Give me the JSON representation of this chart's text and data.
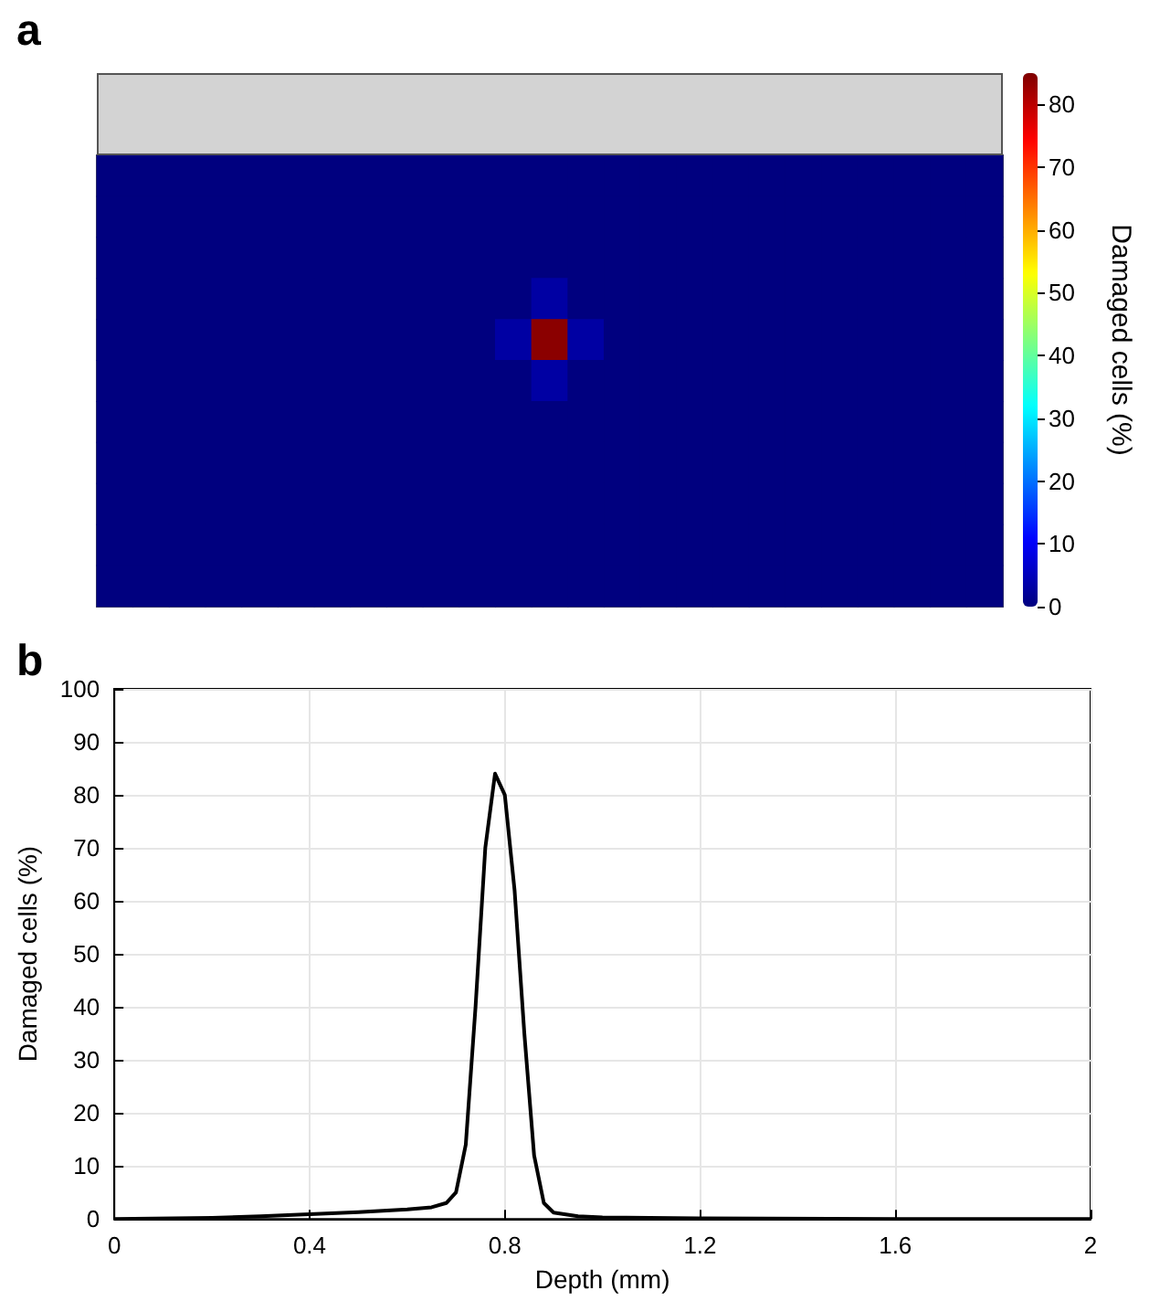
{
  "chart_data": [
    {
      "type": "heatmap",
      "title": "a",
      "clabel": "Damaged cells (%)",
      "clim": [
        0,
        85
      ],
      "cticks": [
        0,
        10,
        20,
        30,
        40,
        50,
        60,
        70,
        80
      ],
      "categories": [
        null,
        null,
        null,
        null,
        null,
        null,
        null,
        null,
        null,
        null,
        null,
        null,
        null,
        null,
        null,
        null,
        null,
        null,
        null,
        null,
        null,
        null,
        null,
        null,
        null
      ],
      "y_categories": [
        null,
        null,
        null,
        null,
        null,
        null,
        null,
        null,
        null,
        null,
        null
      ],
      "cells": [
        [
          0,
          0,
          0,
          0,
          0,
          0,
          0,
          0,
          0,
          0,
          0,
          0,
          0,
          0,
          0,
          0,
          0,
          0,
          0,
          0,
          0,
          0,
          0,
          0,
          0
        ],
        [
          0,
          0,
          0,
          0,
          0,
          0,
          0,
          0,
          0,
          0,
          0,
          0,
          0,
          0,
          0,
          0,
          0,
          0,
          0,
          0,
          0,
          0,
          0,
          0,
          0
        ],
        [
          0,
          0,
          0,
          0,
          0,
          0,
          0,
          0,
          0,
          0,
          0,
          0,
          0,
          0,
          0,
          0,
          0,
          0,
          0,
          0,
          0,
          0,
          0,
          0,
          0
        ],
        [
          0,
          0,
          0,
          0,
          0,
          0,
          0,
          0,
          0,
          0,
          0,
          0,
          3,
          0,
          0,
          0,
          0,
          0,
          0,
          0,
          0,
          0,
          0,
          0,
          0
        ],
        [
          0,
          0,
          0,
          0,
          0,
          0,
          0,
          0,
          0,
          0,
          0,
          3,
          84,
          3,
          0,
          0,
          0,
          0,
          0,
          0,
          0,
          0,
          0,
          0,
          0
        ],
        [
          0,
          0,
          0,
          0,
          0,
          0,
          0,
          0,
          0,
          0,
          0,
          0,
          3,
          0,
          0,
          0,
          0,
          0,
          0,
          0,
          0,
          0,
          0,
          0,
          0
        ],
        [
          0,
          0,
          0,
          0,
          0,
          0,
          0,
          0,
          0,
          0,
          0,
          0,
          0,
          0,
          0,
          0,
          0,
          0,
          0,
          0,
          0,
          0,
          0,
          0,
          0
        ],
        [
          0,
          0,
          0,
          0,
          0,
          0,
          0,
          0,
          0,
          0,
          0,
          0,
          0,
          0,
          0,
          0,
          0,
          0,
          0,
          0,
          0,
          0,
          0,
          0,
          0
        ],
        [
          0,
          0,
          0,
          0,
          0,
          0,
          0,
          0,
          0,
          0,
          0,
          0,
          0,
          0,
          0,
          0,
          0,
          0,
          0,
          0,
          0,
          0,
          0,
          0,
          0
        ],
        [
          0,
          0,
          0,
          0,
          0,
          0,
          0,
          0,
          0,
          0,
          0,
          0,
          0,
          0,
          0,
          0,
          0,
          0,
          0,
          0,
          0,
          0,
          0,
          0,
          0
        ],
        [
          0,
          0,
          0,
          0,
          0,
          0,
          0,
          0,
          0,
          0,
          0,
          0,
          0,
          0,
          0,
          0,
          0,
          0,
          0,
          0,
          0,
          0,
          0,
          0,
          0
        ]
      ]
    },
    {
      "type": "line",
      "title": "b",
      "xlabel": "Depth (mm)",
      "ylabel": "Damaged cells (%)",
      "xlim": [
        0,
        2
      ],
      "xticks": [
        0,
        0.4,
        0.8,
        1.2,
        1.6,
        2
      ],
      "ylim": [
        0,
        100
      ],
      "yticks": [
        0,
        10,
        20,
        30,
        40,
        50,
        60,
        70,
        80,
        90,
        100
      ],
      "grid": true,
      "marker": "none",
      "x": [
        0,
        0.2,
        0.3,
        0.4,
        0.5,
        0.6,
        0.65,
        0.68,
        0.7,
        0.72,
        0.74,
        0.76,
        0.78,
        0.8,
        0.82,
        0.84,
        0.86,
        0.88,
        0.9,
        0.95,
        1.0,
        1.2,
        1.6,
        2
      ],
      "series": [
        {
          "color": "#000000",
          "values": [
            0,
            0.2,
            0.5,
            0.9,
            1.3,
            1.8,
            2.2,
            3,
            5,
            14,
            40,
            70,
            84,
            80,
            62,
            35,
            12,
            3,
            1.2,
            0.5,
            0.3,
            0.1,
            0,
            0
          ]
        }
      ]
    }
  ]
}
